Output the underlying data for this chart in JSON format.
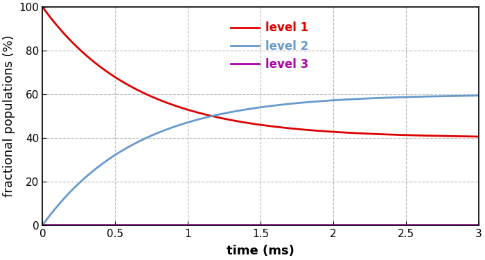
{
  "title": "",
  "xlabel": "time (ms)",
  "ylabel": "fractional populations (%)",
  "xlim": [
    0,
    3
  ],
  "ylim": [
    0,
    100
  ],
  "xticks": [
    0,
    0.5,
    1.0,
    1.5,
    2.0,
    2.5,
    3.0
  ],
  "yticks": [
    0,
    20,
    40,
    60,
    80,
    100
  ],
  "level1_color": "#dd0000",
  "level2_color": "#6699cc",
  "level3_color": "#aa00aa",
  "level1_label": "level 1",
  "level2_label": "level 2",
  "level3_label": "level 3",
  "linewidth": 2.0,
  "legend_fontsize": 12,
  "axis_label_fontsize": 13,
  "tick_fontsize": 11,
  "background_color": "#ffffff",
  "grid_color": "#aaaaaa",
  "t_max": 3.0,
  "n_points": 2000,
  "N1_inf": 40.0,
  "N2_inf": 60.0,
  "tau": 0.65
}
